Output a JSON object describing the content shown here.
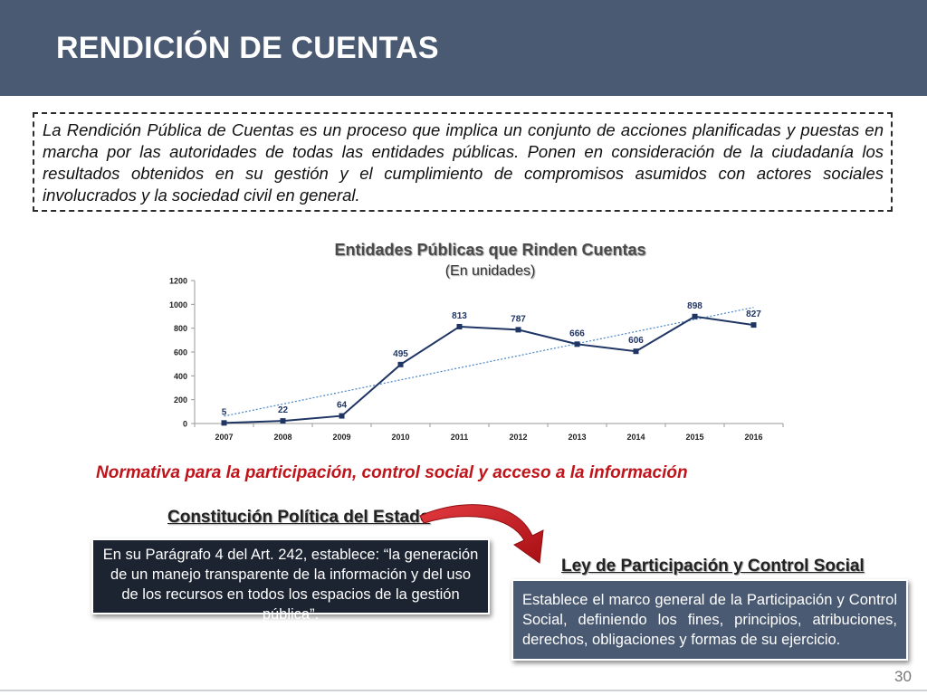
{
  "header": {
    "title": "RENDICIÓN DE CUENTAS"
  },
  "intro": {
    "text": "La Rendición Pública de Cuentas es un proceso que implica un conjunto de acciones planificadas y puestas en marcha por las autoridades de todas las entidades públicas. Ponen en consideración de la ciudadanía los resultados obtenidos en su gestión y el cumplimiento de compromisos asumidos con actores sociales involucrados y la sociedad civil en general."
  },
  "chart_data": {
    "type": "line",
    "title": "Entidades Públicas que Rinden Cuentas",
    "subtitle": "(En unidades)",
    "xlabel": "",
    "ylabel": "",
    "categories": [
      "2007",
      "2008",
      "2009",
      "2010",
      "2011",
      "2012",
      "2013",
      "2014",
      "2015",
      "2016"
    ],
    "series": [
      {
        "values": [
          5,
          22,
          64,
          495,
          813,
          787,
          666,
          606,
          898,
          827
        ]
      }
    ],
    "trendline": true,
    "ylim": [
      0,
      1200
    ],
    "yticks": [
      "0",
      "200",
      "400",
      "600",
      "800",
      "1000",
      "1200"
    ],
    "grid": false,
    "colors": {
      "line": "#1f3564",
      "label": "#1f3564",
      "trend": "#4a86c8",
      "axis": "#9a9a9a"
    }
  },
  "normativa": {
    "heading": "Normativa para la participación, control social y acceso a la información"
  },
  "constitucion": {
    "title": "Constitución Política del Estado",
    "text": "En su Parágrafo 4 del Art. 242, establece: “la generación de un manejo transparente de la información y del uso de los recursos en todos los espacios de la gestión pública”."
  },
  "ley": {
    "title": "Ley de Participación y Control Social",
    "text": "Establece el marco general de la Participación y Control Social, definiendo los fines, principios, atribuciones, derechos, obligaciones y formas de su ejercicio."
  },
  "arrow": {
    "icon": "curved-arrow-icon",
    "color": "#d0181f"
  },
  "page": {
    "number": "30"
  },
  "theme": {
    "header_bg": "#4a5a72",
    "accent_red": "#c0141b",
    "dark_box": "#1c2331"
  }
}
